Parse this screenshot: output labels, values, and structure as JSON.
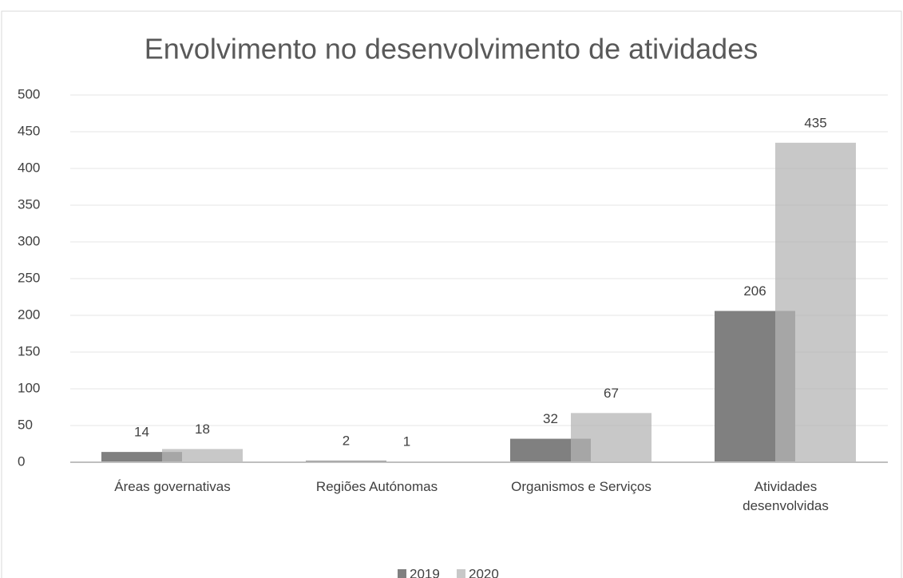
{
  "chart_data": {
    "type": "bar",
    "title": "Envolvimento no desenvolvimento de atividades",
    "categories": [
      "Áreas governativas",
      "Regiões Autónomas",
      "Organismos e Serviços",
      "Atividades desenvolvidas"
    ],
    "series": [
      {
        "name": "2019",
        "color": "#808080",
        "opacity": 1,
        "values": [
          14,
          2,
          32,
          206
        ]
      },
      {
        "name": "2020",
        "color": "#b4b4b4",
        "opacity": 0.73,
        "values": [
          18,
          1,
          67,
          435
        ]
      }
    ],
    "ylim": [
      0,
      500
    ],
    "yticks": [
      0,
      50,
      100,
      150,
      200,
      250,
      300,
      350,
      400,
      450,
      500
    ],
    "grid": true,
    "legend": "bottom"
  }
}
